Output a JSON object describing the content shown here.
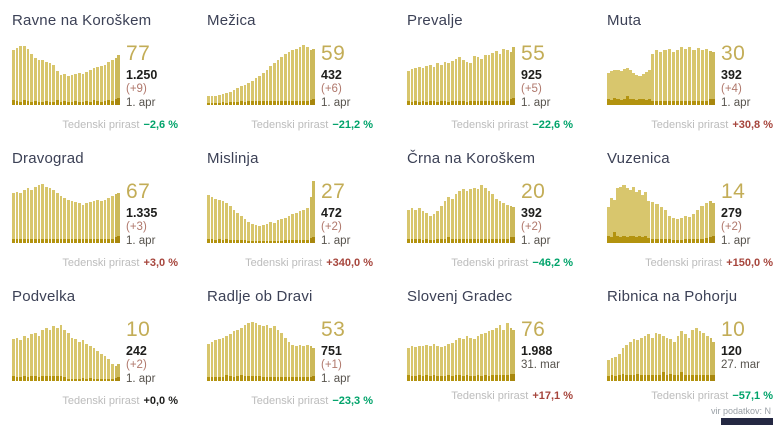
{
  "colors": {
    "gold": "#c3ad57",
    "green": "#00a36a",
    "red": "#a6453c",
    "delta_red": "#b0786c",
    "bar_light": "#d8c66d",
    "bar_dark": "#b3930f",
    "bar_recent_light": "#ccb95a",
    "bar_recent_dark": "#a8870e",
    "title": "#3c4156",
    "footer_bar": "#242842"
  },
  "source_note": "vir podatkov: N",
  "weekly_label": "Tedenski prirast",
  "cards": [
    {
      "title": "Ravne na Koroškem",
      "big_number": "77",
      "total": "1.250",
      "delta": "(+9)",
      "date": "1. apr",
      "weekly_change": "−2,6 %",
      "weekly_trend": "down",
      "chart_data": {
        "type": "bar",
        "values": [
          88,
          92,
          95,
          95,
          90,
          83,
          76,
          72,
          73,
          70,
          67,
          64,
          55,
          48,
          50,
          47,
          48,
          50,
          52,
          50,
          53,
          57,
          60,
          62,
          63,
          65,
          69,
          72,
          76,
          80
        ],
        "base": [
          8,
          6,
          5,
          8,
          6,
          5,
          6,
          5,
          5,
          6,
          5,
          5,
          8,
          5,
          6,
          5,
          5,
          6,
          5,
          5,
          6,
          5,
          8,
          6,
          5,
          6,
          8,
          6,
          10,
          12
        ],
        "merged_until": 0
      }
    },
    {
      "title": "Mežica",
      "big_number": "59",
      "total": "432",
      "delta": "(+6)",
      "date": "1. apr",
      "weekly_change": "−21,2 %",
      "weekly_trend": "down",
      "chart_data": {
        "type": "bar",
        "values": [
          14,
          14,
          15,
          16,
          17,
          19,
          21,
          24,
          27,
          30,
          33,
          36,
          39,
          43,
          47,
          52,
          57,
          63,
          68,
          73,
          78,
          82,
          85,
          88,
          91,
          94,
          96,
          93,
          88,
          90
        ],
        "base": [
          4,
          4,
          4,
          4,
          5,
          4,
          5,
          5,
          5,
          6,
          5,
          6,
          6,
          6,
          6,
          6,
          7,
          6,
          7,
          6,
          7,
          7,
          6,
          7,
          7,
          6,
          7,
          7,
          8,
          9
        ],
        "merged_until": 0
      }
    },
    {
      "title": "Prevalje",
      "big_number": "55",
      "total": "925",
      "delta": "(+5)",
      "date": "1. apr",
      "weekly_change": "−22,6 %",
      "weekly_trend": "down",
      "chart_data": {
        "type": "bar",
        "values": [
          55,
          58,
          60,
          62,
          60,
          63,
          64,
          62,
          67,
          65,
          69,
          68,
          71,
          74,
          77,
          72,
          70,
          68,
          79,
          77,
          75,
          81,
          80,
          84,
          87,
          83,
          91,
          88,
          86,
          94
        ],
        "base": [
          6,
          5,
          6,
          5,
          6,
          5,
          6,
          6,
          5,
          6,
          6,
          5,
          6,
          6,
          6,
          6,
          5,
          6,
          6,
          6,
          6,
          6,
          6,
          6,
          6,
          6,
          6,
          6,
          10,
          12
        ],
        "merged_until": 0
      }
    },
    {
      "title": "Muta",
      "big_number": "30",
      "total": "392",
      "delta": "(+4)",
      "date": "1. apr",
      "weekly_change": "+30,8 %",
      "weekly_trend": "up",
      "chart_data": {
        "type": "bar",
        "values": [
          52,
          55,
          56,
          57,
          55,
          58,
          60,
          57,
          52,
          48,
          46,
          50,
          53,
          56,
          82,
          88,
          85,
          88,
          90,
          86,
          89,
          93,
          90,
          94,
          89,
          92,
          88,
          90,
          87,
          85
        ],
        "base": [
          10,
          8,
          12,
          9,
          8,
          10,
          14,
          10,
          9,
          8,
          10,
          9,
          8,
          9,
          7,
          6,
          7,
          6,
          7,
          6,
          7,
          7,
          6,
          7,
          6,
          7,
          6,
          7,
          9,
          10
        ],
        "merged_until": 14
      }
    },
    {
      "title": "Dravograd",
      "big_number": "67",
      "total": "1.335",
      "delta": "(+3)",
      "date": "1. apr",
      "weekly_change": "+3,0 %",
      "weekly_trend": "up",
      "chart_data": {
        "type": "bar",
        "values": [
          80,
          83,
          81,
          86,
          88,
          86,
          90,
          93,
          95,
          91,
          88,
          85,
          80,
          76,
          73,
          70,
          68,
          66,
          64,
          62,
          64,
          66,
          68,
          70,
          67,
          69,
          73,
          76,
          79,
          81
        ],
        "base": [
          7,
          6,
          6,
          7,
          6,
          6,
          7,
          6,
          6,
          7,
          6,
          6,
          7,
          6,
          6,
          6,
          6,
          6,
          6,
          6,
          6,
          6,
          6,
          6,
          6,
          6,
          6,
          6,
          9,
          11
        ],
        "merged_until": 0
      }
    },
    {
      "title": "Mislinja",
      "big_number": "27",
      "total": "472",
      "delta": "(+2)",
      "date": "1. apr",
      "weekly_change": "+340,0 %",
      "weekly_trend": "up",
      "chart_data": {
        "type": "bar",
        "values": [
          78,
          74,
          71,
          69,
          67,
          64,
          59,
          54,
          49,
          44,
          39,
          34,
          31,
          29,
          27,
          29,
          31,
          34,
          32,
          37,
          39,
          41,
          44,
          47,
          49,
          51,
          54,
          57,
          74,
          100
        ],
        "base": [
          6,
          6,
          5,
          6,
          5,
          6,
          5,
          5,
          5,
          5,
          5,
          4,
          4,
          4,
          4,
          4,
          4,
          4,
          4,
          4,
          4,
          5,
          5,
          5,
          5,
          5,
          5,
          5,
          8,
          10
        ],
        "merged_until": 0
      }
    },
    {
      "title": "Črna na Koroškem",
      "big_number": "20",
      "total": "392",
      "delta": "(+2)",
      "date": "1. apr",
      "weekly_change": "−46,2 %",
      "weekly_trend": "down",
      "chart_data": {
        "type": "bar",
        "values": [
          54,
          57,
          54,
          56,
          51,
          49,
          44,
          47,
          51,
          59,
          67,
          74,
          71,
          79,
          84,
          87,
          84,
          87,
          89,
          87,
          94,
          89,
          84,
          79,
          71,
          67,
          64,
          61,
          59,
          58
        ],
        "base": [
          6,
          6,
          6,
          6,
          5,
          6,
          5,
          5,
          6,
          6,
          6,
          10,
          6,
          6,
          6,
          6,
          6,
          6,
          6,
          6,
          6,
          6,
          6,
          6,
          6,
          6,
          6,
          6,
          9,
          10
        ],
        "merged_until": 0
      }
    },
    {
      "title": "Vuzenica",
      "big_number": "14",
      "total": "279",
      "delta": "(+2)",
      "date": "1. apr",
      "weekly_change": "+150,0 %",
      "weekly_trend": "up",
      "chart_data": {
        "type": "bar",
        "values": [
          58,
          73,
          70,
          88,
          90,
          93,
          88,
          86,
          90,
          83,
          86,
          78,
          83,
          68,
          66,
          63,
          58,
          53,
          44,
          41,
          39,
          41,
          44,
          42,
          47,
          54,
          59,
          64,
          67,
          65
        ],
        "base": [
          12,
          10,
          18,
          12,
          10,
          12,
          10,
          11,
          12,
          10,
          11,
          10,
          11,
          8,
          7,
          7,
          7,
          6,
          6,
          5,
          5,
          5,
          6,
          6,
          6,
          6,
          7,
          8,
          10,
          11
        ],
        "merged_until": 13
      }
    },
    {
      "title": "Podvelka",
      "big_number": "10",
      "total": "242",
      "delta": "(+2)",
      "date": "1. apr",
      "weekly_change": "+0,0 %",
      "weekly_trend": "zero",
      "chart_data": {
        "type": "bar",
        "values": [
          68,
          70,
          66,
          73,
          70,
          76,
          78,
          73,
          83,
          86,
          83,
          88,
          86,
          90,
          83,
          78,
          70,
          68,
          63,
          66,
          60,
          56,
          53,
          48,
          43,
          40,
          36,
          28,
          24,
          27
        ],
        "base": [
          8,
          7,
          7,
          8,
          7,
          8,
          8,
          7,
          8,
          8,
          8,
          8,
          8,
          8,
          7,
          3,
          3,
          3,
          3,
          5,
          3,
          5,
          3,
          3,
          3,
          3,
          3,
          4,
          5,
          6
        ],
        "merged_until": 0
      }
    },
    {
      "title": "Radlje ob Dravi",
      "big_number": "53",
      "total": "751",
      "delta": "(+1)",
      "date": "1. apr",
      "weekly_change": "−23,3 %",
      "weekly_trend": "down",
      "chart_data": {
        "type": "bar",
        "values": [
          60,
          63,
          66,
          68,
          70,
          73,
          76,
          80,
          83,
          86,
          90,
          93,
          95,
          93,
          90,
          88,
          90,
          86,
          88,
          83,
          78,
          70,
          63,
          58,
          56,
          58,
          56,
          58,
          56,
          54
        ],
        "base": [
          7,
          6,
          7,
          7,
          7,
          10,
          8,
          7,
          8,
          10,
          8,
          8,
          8,
          8,
          8,
          7,
          7,
          7,
          7,
          7,
          7,
          7,
          6,
          6,
          6,
          6,
          6,
          6,
          7,
          8
        ],
        "merged_until": 0
      }
    },
    {
      "title": "Slovenj Gradec",
      "big_number": "76",
      "total": "1.988",
      "delta": "",
      "date": "31. mar",
      "weekly_change": "+17,1 %",
      "weekly_trend": "up",
      "chart_data": {
        "type": "bar",
        "values": [
          54,
          57,
          55,
          57,
          56,
          58,
          57,
          59,
          57,
          55,
          57,
          59,
          61,
          66,
          70,
          68,
          73,
          70,
          68,
          73,
          76,
          78,
          80,
          83,
          86,
          90,
          83,
          93,
          86,
          82
        ],
        "base": [
          10,
          8,
          8,
          9,
          8,
          9,
          8,
          9,
          8,
          8,
          8,
          9,
          8,
          9,
          9,
          8,
          9,
          8,
          8,
          9,
          8,
          9,
          8,
          9,
          9,
          9,
          9,
          9,
          11,
          12
        ],
        "merged_until": 0
      }
    },
    {
      "title": "Ribnica na Pohorju",
      "big_number": "10",
      "total": "120",
      "delta": "",
      "date": "27. mar",
      "weekly_change": "−57,1 %",
      "weekly_trend": "down",
      "chart_data": {
        "type": "bar",
        "values": [
          34,
          37,
          39,
          44,
          53,
          58,
          63,
          68,
          66,
          70,
          73,
          76,
          70,
          78,
          76,
          73,
          70,
          68,
          63,
          73,
          80,
          76,
          70,
          83,
          86,
          80,
          78,
          73,
          70,
          63
        ],
        "base": [
          8,
          10,
          8,
          9,
          12,
          9,
          10,
          9,
          12,
          9,
          10,
          9,
          10,
          9,
          9,
          14,
          9,
          12,
          9,
          9,
          14,
          9,
          10,
          9,
          10,
          9,
          9,
          9,
          10,
          9
        ],
        "merged_until": 0
      }
    }
  ]
}
